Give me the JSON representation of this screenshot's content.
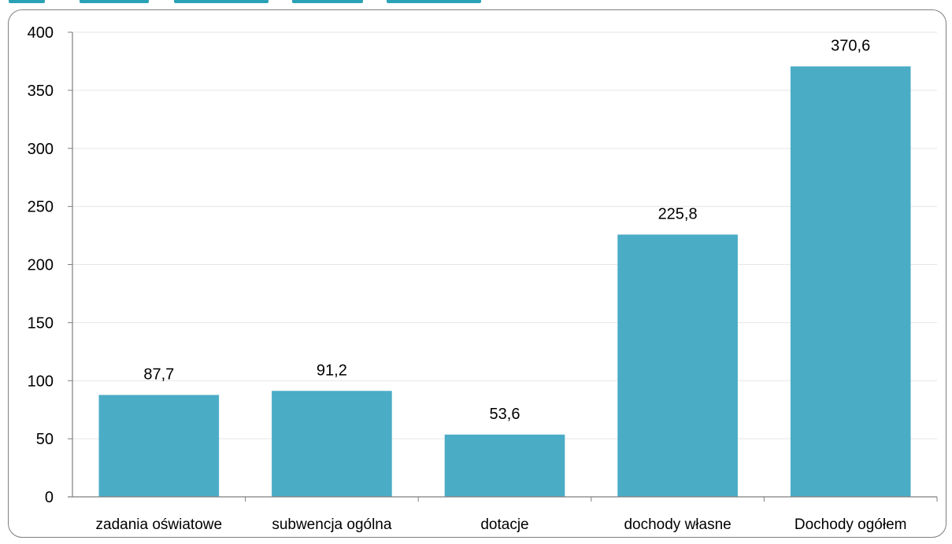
{
  "chart_data": {
    "type": "bar",
    "categories": [
      "zadania oświatowe",
      "subwencja ogólna",
      "dotacje",
      "dochody własne",
      "Dochody ogółem"
    ],
    "values": [
      87.7,
      91.2,
      53.6,
      225.8,
      370.6
    ],
    "value_labels": [
      "87,7",
      "91,2",
      "53,6",
      "225,8",
      "370,6"
    ],
    "yticks": [
      0,
      50,
      100,
      150,
      200,
      250,
      300,
      350,
      400
    ],
    "ylim": [
      0,
      400
    ],
    "grid": true,
    "legend": "none",
    "bar_color": "#4bacc6",
    "grid_color": "#e6e6e6",
    "axis_color": "#7f7f7f"
  }
}
